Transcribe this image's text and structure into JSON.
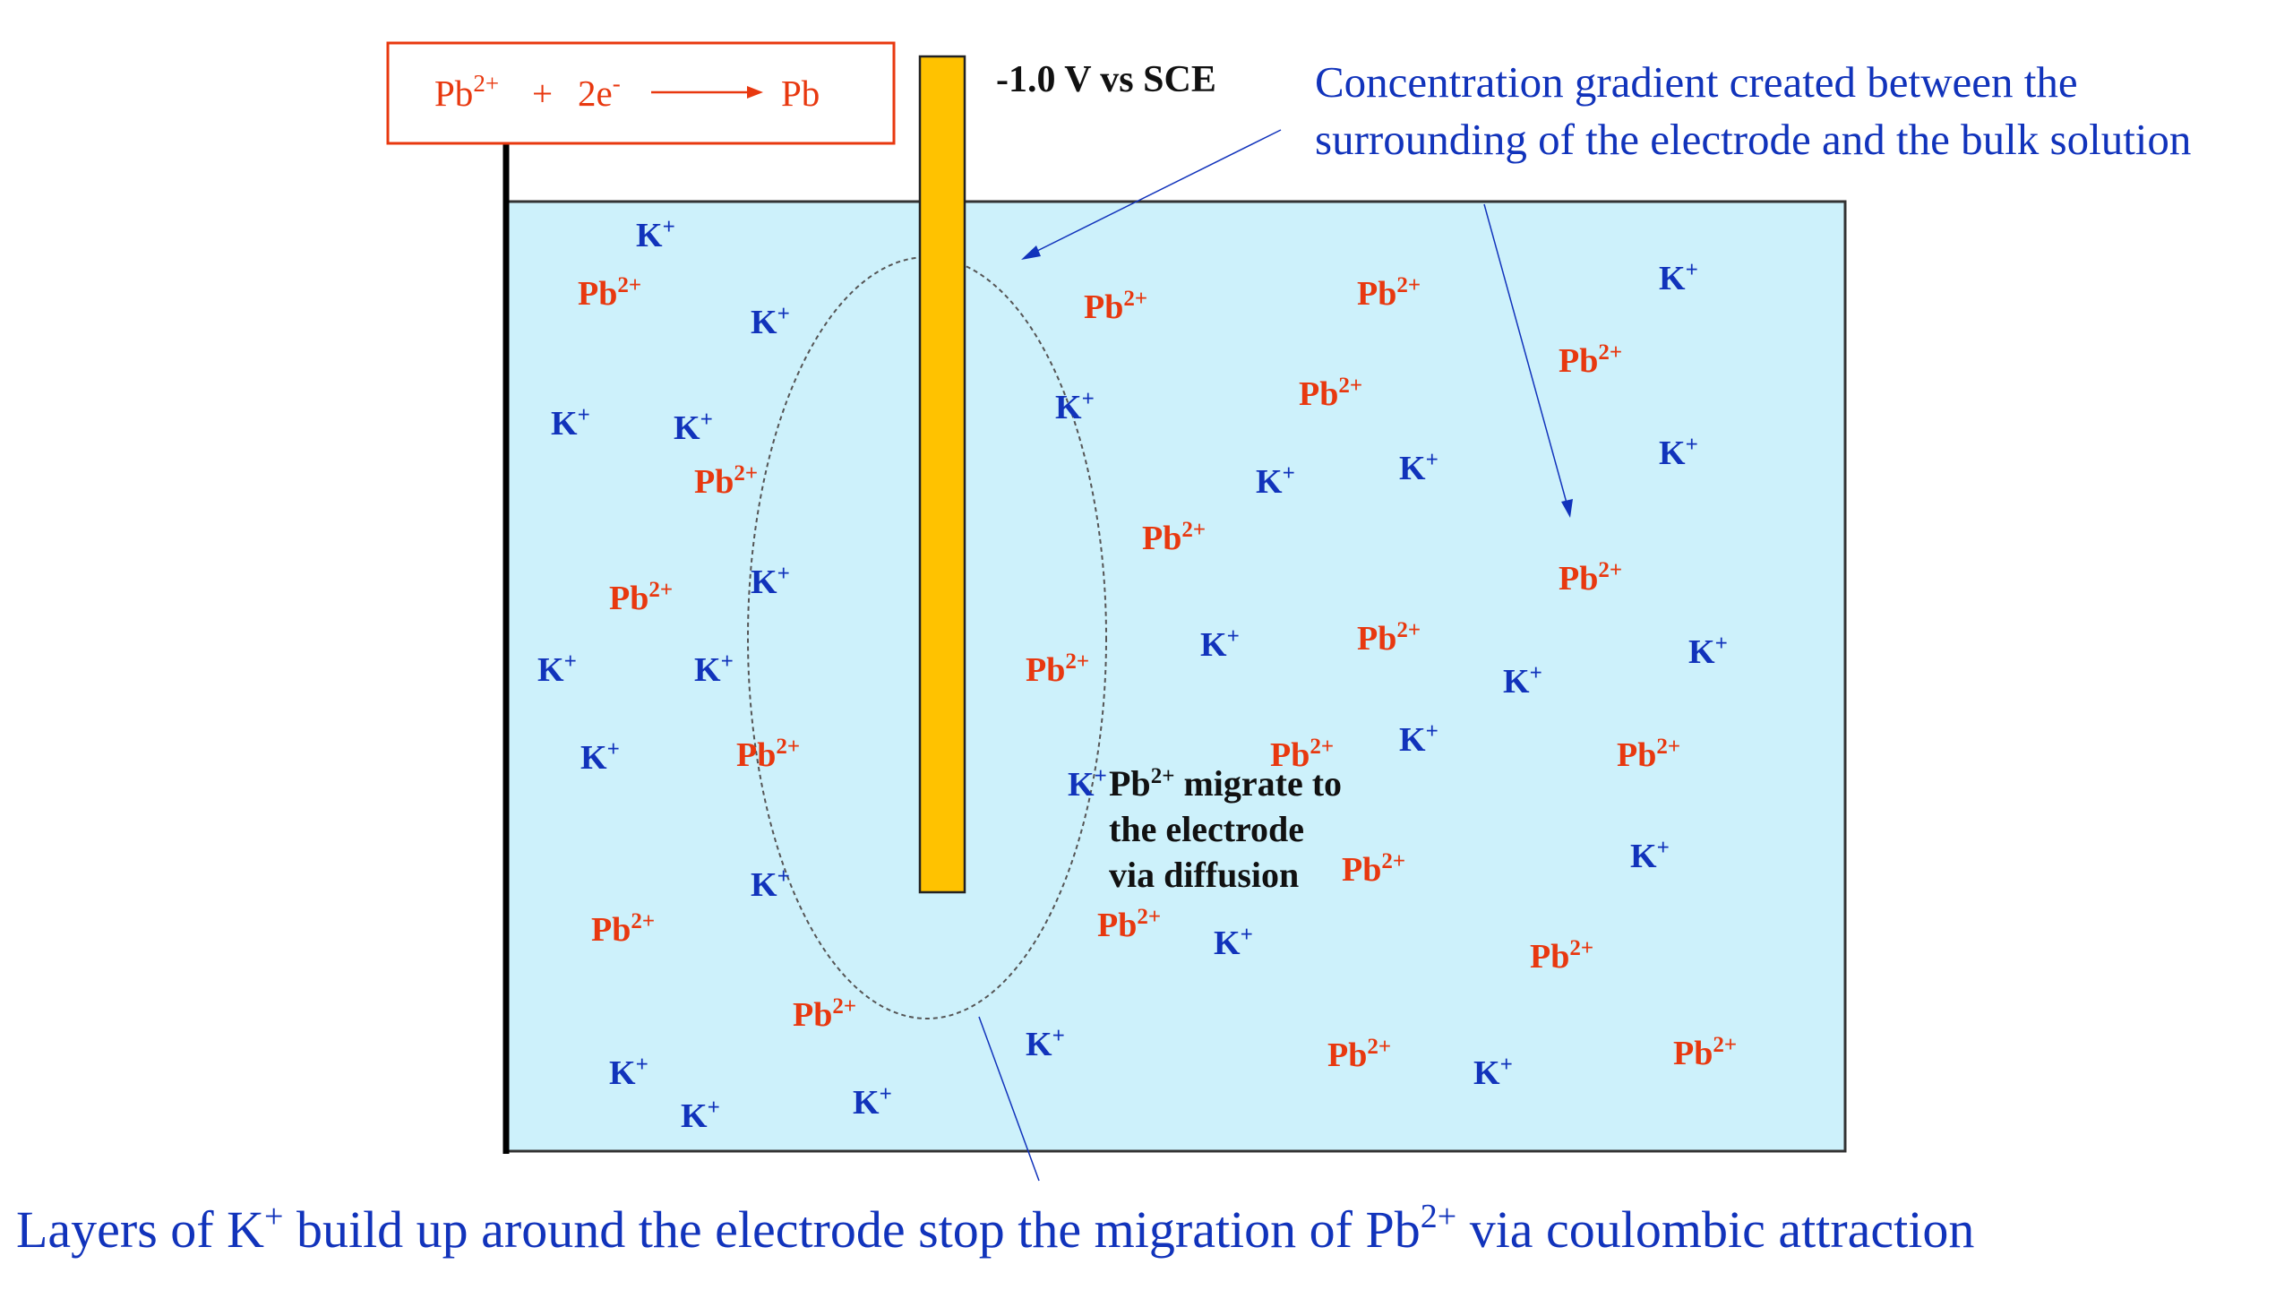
{
  "reaction": {
    "reactant": "Pb",
    "reactant_charge": "2+",
    "plus": "+",
    "electrons": "2e",
    "electron_charge": "-",
    "product": "Pb"
  },
  "potential_label": "-1.0 V vs SCE",
  "gradient_note": {
    "line1": "Concentration gradient created between the",
    "line2": "surrounding of the electrode and the bulk solution"
  },
  "migration_note": {
    "ion": "Pb",
    "ion_charge": "2+",
    "line1_rest": " migrate to",
    "line2": "the electrode",
    "line3": "via diffusion"
  },
  "bottom_caption": {
    "part1": "Layers of K",
    "charge1": "+",
    "part2": " build up around the electrode stop the migration of Pb",
    "charge2": "2+",
    "part3": " via coulombic attraction"
  },
  "ion_labels": {
    "potassium": {
      "symbol": "K",
      "charge": "+"
    },
    "lead": {
      "symbol": "Pb",
      "charge": "2+"
    }
  },
  "colors": {
    "solution": "#cdf1fb",
    "electrode": "#ffc200",
    "potassium_ion": "#1133bb",
    "lead_ion": "#e8380f",
    "annotation_blue": "#1133bb",
    "reaction_box_border": "#e8380f"
  }
}
